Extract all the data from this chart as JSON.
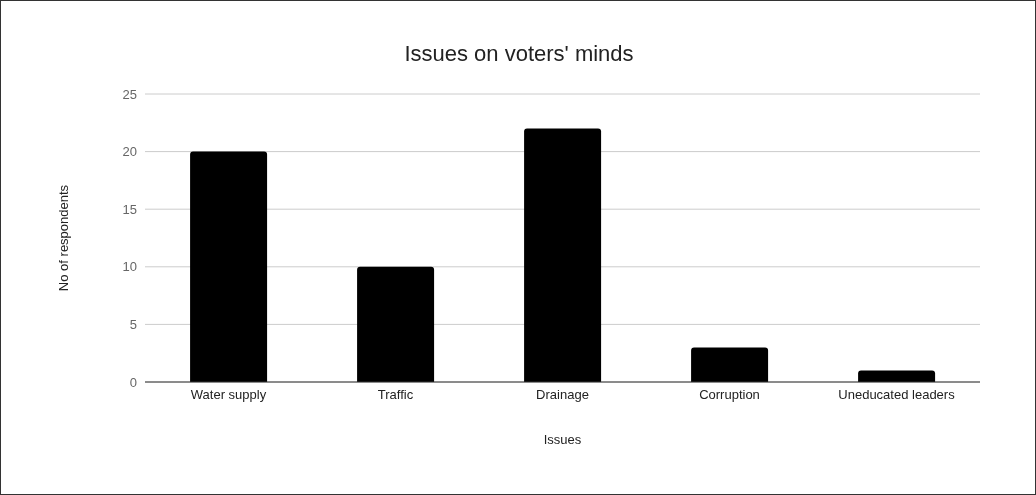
{
  "chart_data": {
    "type": "bar",
    "title": "Issues on voters' minds",
    "xlabel": "Issues",
    "ylabel": "No of respondents",
    "categories": [
      "Water supply",
      "Traffic",
      "Drainage",
      "Corruption",
      "Uneducated leaders"
    ],
    "values": [
      20,
      10,
      22,
      3,
      1
    ],
    "color": "#000000",
    "ylim": [
      0,
      25
    ],
    "yticks": [
      0,
      5,
      10,
      15,
      20,
      25
    ],
    "grid": "y"
  }
}
